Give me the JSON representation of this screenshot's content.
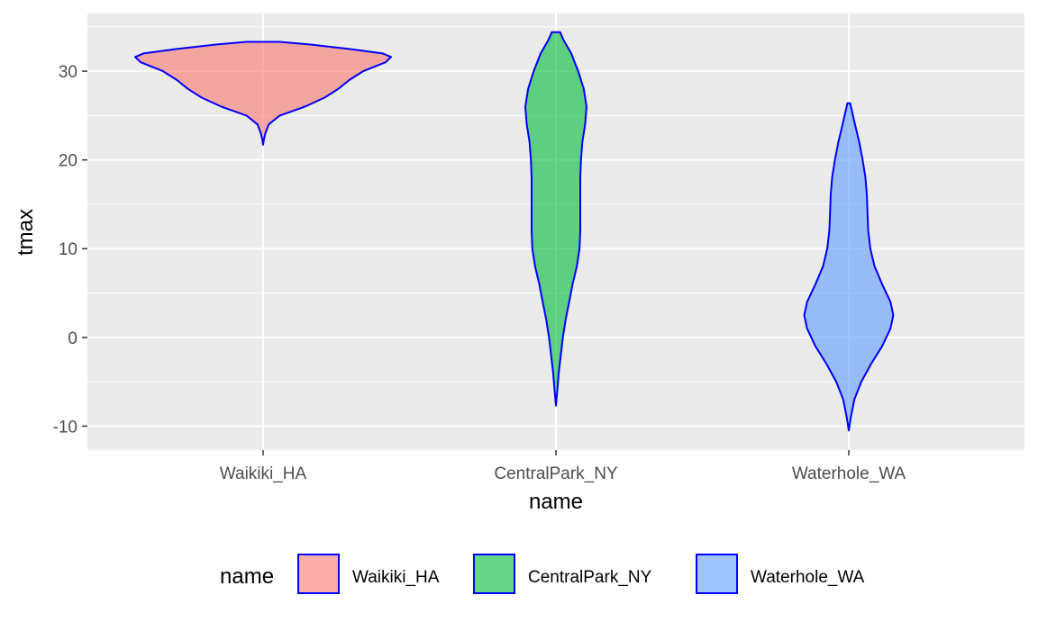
{
  "chart_data": {
    "type": "violin",
    "xlabel": "name",
    "ylabel": "tmax",
    "ylim": [
      -12.7,
      36.5
    ],
    "yticks": [
      -10,
      0,
      10,
      20,
      30
    ],
    "categories": [
      "Waikiki_HA",
      "CentralPark_NY",
      "Waterhole_WA"
    ],
    "legend": {
      "title": "name",
      "position": "bottom"
    },
    "outline_color": "#0000FF",
    "grid": true,
    "series": [
      {
        "name": "Waikiki_HA",
        "color": "#F8766D",
        "min": 21.7,
        "max": 33.3,
        "profile": [
          [
            21.7,
            0.0
          ],
          [
            22.3,
            0.006
          ],
          [
            23.0,
            0.016
          ],
          [
            24.0,
            0.04
          ],
          [
            25.0,
            0.12
          ],
          [
            26.0,
            0.3
          ],
          [
            27.0,
            0.44
          ],
          [
            28.0,
            0.54
          ],
          [
            29.0,
            0.62
          ],
          [
            30.0,
            0.72
          ],
          [
            31.0,
            0.88
          ],
          [
            31.6,
            0.92
          ],
          [
            32.0,
            0.86
          ],
          [
            32.5,
            0.62
          ],
          [
            33.0,
            0.34
          ],
          [
            33.3,
            0.12
          ]
        ]
      },
      {
        "name": "CentralPark_NY",
        "color": "#00BA38",
        "min": -7.7,
        "max": 34.4,
        "profile": [
          [
            -7.7,
            0.0
          ],
          [
            -6.0,
            0.01
          ],
          [
            -4.0,
            0.02
          ],
          [
            -2.0,
            0.035
          ],
          [
            0.0,
            0.05
          ],
          [
            2.0,
            0.07
          ],
          [
            4.0,
            0.095
          ],
          [
            6.0,
            0.12
          ],
          [
            8.0,
            0.15
          ],
          [
            10.0,
            0.17
          ],
          [
            12.0,
            0.175
          ],
          [
            14.0,
            0.175
          ],
          [
            16.0,
            0.175
          ],
          [
            18.0,
            0.175
          ],
          [
            20.0,
            0.18
          ],
          [
            22.0,
            0.19
          ],
          [
            24.0,
            0.21
          ],
          [
            26.0,
            0.22
          ],
          [
            28.0,
            0.2
          ],
          [
            30.0,
            0.16
          ],
          [
            32.0,
            0.11
          ],
          [
            33.5,
            0.055
          ],
          [
            34.4,
            0.03
          ]
        ]
      },
      {
        "name": "Waterhole_WA",
        "color": "#619CFF",
        "min": -10.5,
        "max": 26.4,
        "profile": [
          [
            -10.5,
            0.0
          ],
          [
            -9.0,
            0.015
          ],
          [
            -7.0,
            0.04
          ],
          [
            -5.0,
            0.09
          ],
          [
            -3.0,
            0.16
          ],
          [
            -1.0,
            0.24
          ],
          [
            1.0,
            0.3
          ],
          [
            2.5,
            0.32
          ],
          [
            4.0,
            0.3
          ],
          [
            6.0,
            0.24
          ],
          [
            8.0,
            0.185
          ],
          [
            10.0,
            0.155
          ],
          [
            12.0,
            0.14
          ],
          [
            14.0,
            0.135
          ],
          [
            16.0,
            0.13
          ],
          [
            18.0,
            0.12
          ],
          [
            20.0,
            0.1
          ],
          [
            22.0,
            0.075
          ],
          [
            24.0,
            0.045
          ],
          [
            26.4,
            0.01
          ]
        ]
      }
    ]
  }
}
